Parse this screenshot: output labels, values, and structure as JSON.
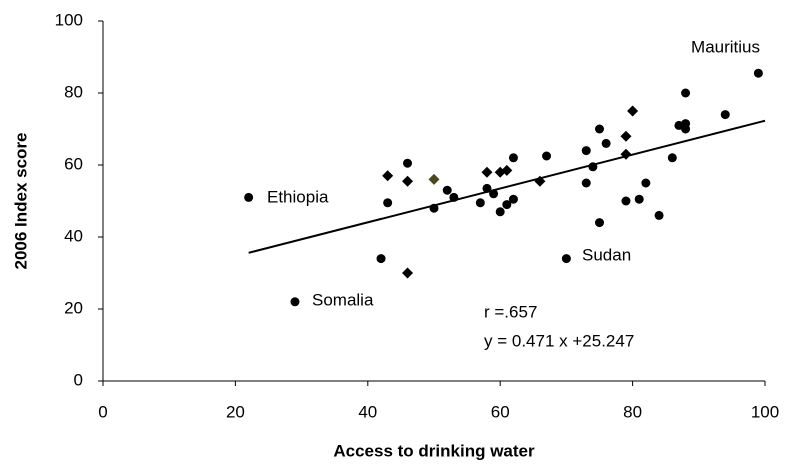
{
  "chart_data": {
    "type": "scatter",
    "x_label": "Access to drinking water",
    "y_label": "2006 Index score",
    "xlim": [
      0,
      100
    ],
    "ylim": [
      0,
      100
    ],
    "xticks": [
      0,
      20,
      40,
      60,
      80,
      100
    ],
    "yticks": [
      0,
      20,
      40,
      60,
      80,
      100
    ],
    "grid": false,
    "series": [
      {
        "marker": "circle",
        "color": "#000000",
        "x": [
          22,
          29,
          99,
          70,
          42,
          43,
          46,
          50,
          52,
          53,
          57,
          58,
          59,
          60,
          61,
          62,
          62,
          67,
          73,
          73,
          74,
          75,
          75,
          76,
          79,
          81,
          82,
          84,
          86,
          87,
          88,
          88,
          88,
          94
        ],
        "values": [
          51,
          22,
          85.5,
          34,
          34,
          49.5,
          60.5,
          48,
          53,
          51,
          49.5,
          53.5,
          52,
          47,
          49,
          50.5,
          62,
          62.5,
          64,
          55,
          59.5,
          70,
          44,
          66,
          50,
          50.5,
          55,
          46,
          62,
          71,
          80,
          71.5,
          70,
          74
        ]
      },
      {
        "marker": "diamond",
        "color": "#000000",
        "x": [
          43,
          46,
          46,
          58,
          60,
          61,
          66,
          79,
          79,
          80
        ],
        "values": [
          57,
          55.5,
          30,
          58,
          58,
          58.5,
          55.5,
          63,
          68,
          75
        ]
      },
      {
        "marker": "diamond",
        "color": "#4a4a1a",
        "x": [
          50
        ],
        "values": [
          56
        ]
      }
    ],
    "trendline": {
      "x": [
        22,
        100
      ],
      "values": [
        35.6,
        72.3
      ]
    },
    "annotations": [
      "Mauritius",
      "Ethiopia",
      "Sudan",
      "Somalia",
      "r =.657",
      "y = 0.471 x +25.247"
    ]
  }
}
